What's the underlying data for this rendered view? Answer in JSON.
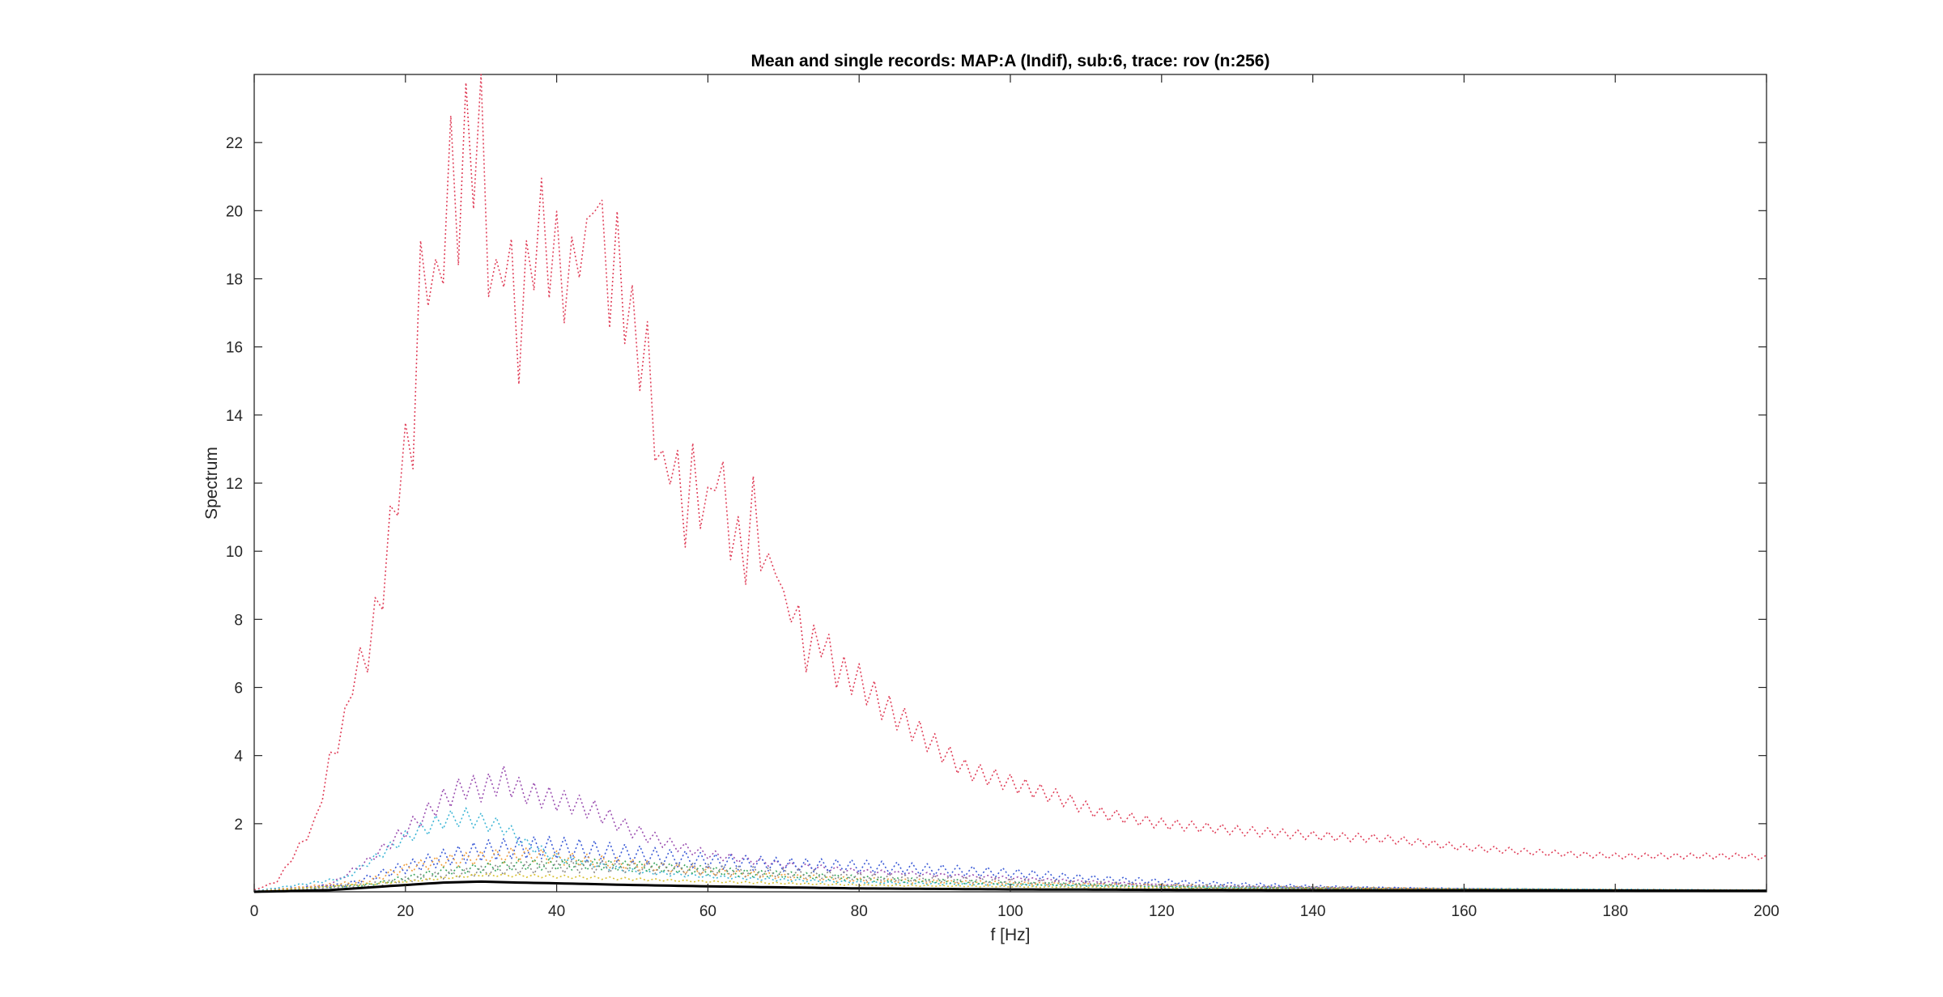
{
  "chart_data": {
    "type": "line",
    "title": "Mean and single records: MAP:A (Indif), sub:6, trace: rov (n:256)",
    "xlabel": "f [Hz]",
    "ylabel": "Spectrum",
    "xlim": [
      0,
      200
    ],
    "ylim": [
      0,
      24
    ],
    "xticks": [
      0,
      20,
      40,
      60,
      80,
      100,
      120,
      140,
      160,
      180,
      200
    ],
    "yticks": [
      2,
      4,
      6,
      8,
      10,
      12,
      14,
      16,
      18,
      20,
      22
    ],
    "x_step_hz": 1,
    "series_count_shown": 9,
    "series": [
      {
        "name": "record-red",
        "style": "dotted",
        "color": "#e0405a",
        "anchors": [
          [
            0,
            0.05
          ],
          [
            3,
            0.3
          ],
          [
            5,
            1.0
          ],
          [
            8,
            2.0
          ],
          [
            10,
            3.8
          ],
          [
            12,
            5.0
          ],
          [
            13,
            6.3
          ],
          [
            15,
            7.0
          ],
          [
            17,
            9.0
          ],
          [
            19,
            12.0
          ],
          [
            21,
            13.5
          ],
          [
            22,
            17.7
          ],
          [
            23,
            18.7
          ],
          [
            24,
            17.2
          ],
          [
            25,
            19.4
          ],
          [
            26,
            21.1
          ],
          [
            27,
            20.0
          ],
          [
            28,
            22.0
          ],
          [
            29,
            21.8
          ],
          [
            30,
            22.8
          ],
          [
            31,
            19.0
          ],
          [
            32,
            17.2
          ],
          [
            33,
            19.3
          ],
          [
            35,
            16.2
          ],
          [
            37,
            19.2
          ],
          [
            38,
            19.4
          ],
          [
            40,
            18.5
          ],
          [
            42,
            17.8
          ],
          [
            43,
            19.6
          ],
          [
            44,
            18.3
          ],
          [
            45,
            21.7
          ],
          [
            46,
            18.8
          ],
          [
            47,
            18.0
          ],
          [
            48,
            18.5
          ],
          [
            50,
            16.5
          ],
          [
            52,
            15.5
          ],
          [
            54,
            12.0
          ],
          [
            55,
            13.0
          ],
          [
            57,
            11.0
          ],
          [
            58,
            12.2
          ],
          [
            60,
            11.0
          ],
          [
            61,
            12.8
          ],
          [
            63,
            10.6
          ],
          [
            65,
            9.8
          ],
          [
            66,
            11.3
          ],
          [
            68,
            9.2
          ],
          [
            69,
            10.1
          ],
          [
            70,
            8.2
          ],
          [
            71,
            8.6
          ],
          [
            73,
            7.0
          ],
          [
            75,
            7.5
          ],
          [
            77,
            6.5
          ],
          [
            80,
            6.2
          ],
          [
            83,
            5.5
          ],
          [
            86,
            5.0
          ],
          [
            90,
            4.3
          ],
          [
            94,
            3.6
          ],
          [
            100,
            3.2
          ],
          [
            106,
            2.8
          ],
          [
            112,
            2.3
          ],
          [
            120,
            2.0
          ],
          [
            130,
            1.8
          ],
          [
            140,
            1.65
          ],
          [
            150,
            1.55
          ],
          [
            160,
            1.3
          ],
          [
            170,
            1.15
          ],
          [
            180,
            1.05
          ],
          [
            190,
            1.05
          ],
          [
            197,
            1.05
          ],
          [
            200,
            1.0
          ]
        ],
        "ripple": 0.08
      },
      {
        "name": "record-purple",
        "style": "dotted",
        "color": "#9b4fb0",
        "anchors": [
          [
            0,
            0.02
          ],
          [
            10,
            0.2
          ],
          [
            15,
            0.9
          ],
          [
            20,
            1.8
          ],
          [
            25,
            2.7
          ],
          [
            28,
            3.1
          ],
          [
            30,
            3.0
          ],
          [
            33,
            3.3
          ],
          [
            35,
            3.0
          ],
          [
            38,
            2.8
          ],
          [
            42,
            2.6
          ],
          [
            45,
            2.4
          ],
          [
            50,
            1.8
          ],
          [
            55,
            1.4
          ],
          [
            60,
            1.1
          ],
          [
            70,
            0.8
          ],
          [
            80,
            0.6
          ],
          [
            90,
            0.5
          ],
          [
            100,
            0.4
          ],
          [
            110,
            0.3
          ],
          [
            120,
            0.2
          ],
          [
            140,
            0.12
          ],
          [
            160,
            0.08
          ],
          [
            200,
            0.05
          ]
        ],
        "ripple": 0.12
      },
      {
        "name": "record-cyan",
        "style": "dotted",
        "color": "#3fb6d6",
        "anchors": [
          [
            0,
            0.02
          ],
          [
            12,
            0.4
          ],
          [
            16,
            1.0
          ],
          [
            20,
            1.6
          ],
          [
            25,
            2.1
          ],
          [
            28,
            2.2
          ],
          [
            31,
            2.0
          ],
          [
            33,
            1.9
          ],
          [
            36,
            1.4
          ],
          [
            40,
            1.0
          ],
          [
            45,
            0.8
          ],
          [
            50,
            0.6
          ],
          [
            60,
            0.45
          ],
          [
            70,
            0.35
          ],
          [
            80,
            0.28
          ],
          [
            100,
            0.2
          ],
          [
            130,
            0.12
          ],
          [
            200,
            0.05
          ]
        ],
        "ripple": 0.12
      },
      {
        "name": "record-blue",
        "style": "dotted",
        "color": "#3b5bd6",
        "anchors": [
          [
            0,
            0.01
          ],
          [
            12,
            0.2
          ],
          [
            18,
            0.6
          ],
          [
            25,
            1.0
          ],
          [
            30,
            1.2
          ],
          [
            35,
            1.3
          ],
          [
            40,
            1.3
          ],
          [
            45,
            1.2
          ],
          [
            50,
            1.1
          ],
          [
            55,
            1.0
          ],
          [
            60,
            0.9
          ],
          [
            70,
            0.8
          ],
          [
            80,
            0.75
          ],
          [
            90,
            0.65
          ],
          [
            100,
            0.55
          ],
          [
            110,
            0.4
          ],
          [
            120,
            0.3
          ],
          [
            140,
            0.15
          ],
          [
            160,
            0.08
          ],
          [
            200,
            0.04
          ]
        ],
        "ripple": 0.25
      },
      {
        "name": "record-orange",
        "style": "dotted",
        "color": "#f0a040",
        "anchors": [
          [
            0,
            0.01
          ],
          [
            15,
            0.3
          ],
          [
            20,
            0.7
          ],
          [
            25,
            0.9
          ],
          [
            30,
            1.0
          ],
          [
            35,
            1.1
          ],
          [
            40,
            1.0
          ],
          [
            50,
            0.8
          ],
          [
            60,
            0.6
          ],
          [
            70,
            0.45
          ],
          [
            80,
            0.35
          ],
          [
            100,
            0.25
          ],
          [
            130,
            0.15
          ],
          [
            160,
            0.08
          ],
          [
            200,
            0.04
          ]
        ],
        "ripple": 0.2
      },
      {
        "name": "record-green",
        "style": "dotted",
        "color": "#3da860",
        "anchors": [
          [
            0,
            0.01
          ],
          [
            15,
            0.2
          ],
          [
            25,
            0.6
          ],
          [
            35,
            0.8
          ],
          [
            45,
            0.8
          ],
          [
            55,
            0.7
          ],
          [
            65,
            0.55
          ],
          [
            75,
            0.45
          ],
          [
            85,
            0.35
          ],
          [
            100,
            0.25
          ],
          [
            120,
            0.15
          ],
          [
            150,
            0.08
          ],
          [
            200,
            0.03
          ]
        ],
        "ripple": 0.2
      },
      {
        "name": "record-gray",
        "style": "dotted",
        "color": "#8a8a8a",
        "anchors": [
          [
            0,
            0.01
          ],
          [
            15,
            0.2
          ],
          [
            25,
            0.5
          ],
          [
            35,
            0.7
          ],
          [
            45,
            0.75
          ],
          [
            55,
            0.7
          ],
          [
            65,
            0.6
          ],
          [
            75,
            0.5
          ],
          [
            85,
            0.4
          ],
          [
            95,
            0.35
          ],
          [
            110,
            0.25
          ],
          [
            130,
            0.15
          ],
          [
            160,
            0.08
          ],
          [
            200,
            0.03
          ]
        ],
        "ripple": 0.25
      },
      {
        "name": "record-yellow",
        "style": "dotted",
        "color": "#d8c030",
        "anchors": [
          [
            0,
            0.01
          ],
          [
            20,
            0.3
          ],
          [
            30,
            0.5
          ],
          [
            40,
            0.45
          ],
          [
            60,
            0.3
          ],
          [
            80,
            0.2
          ],
          [
            100,
            0.15
          ],
          [
            140,
            0.08
          ],
          [
            200,
            0.05
          ]
        ],
        "ripple": 0.1
      },
      {
        "name": "mean",
        "style": "solid",
        "color": "#000000",
        "anchors": [
          [
            0,
            0.0
          ],
          [
            10,
            0.05
          ],
          [
            20,
            0.2
          ],
          [
            25,
            0.27
          ],
          [
            30,
            0.3
          ],
          [
            35,
            0.27
          ],
          [
            40,
            0.25
          ],
          [
            50,
            0.2
          ],
          [
            60,
            0.16
          ],
          [
            80,
            0.1
          ],
          [
            100,
            0.07
          ],
          [
            130,
            0.05
          ],
          [
            160,
            0.04
          ],
          [
            200,
            0.03
          ]
        ],
        "ripple": 0.0
      }
    ]
  }
}
